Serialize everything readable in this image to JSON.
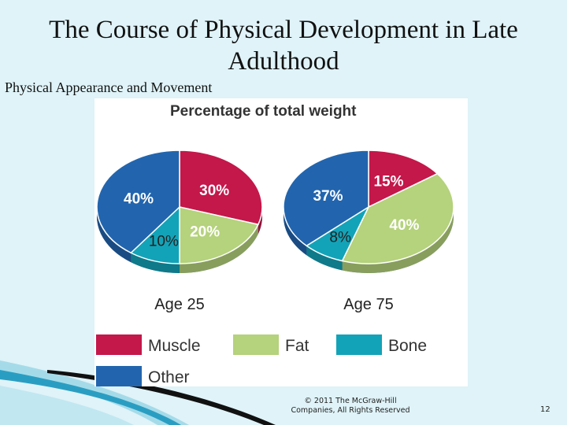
{
  "slide": {
    "title": "The Course of Physical Development in Late Adulthood",
    "subtitle": "Physical Appearance and Movement",
    "footer_line1": "© 2011 The McGraw-Hill",
    "footer_line2": "Companies, All Rights Reserved",
    "page_number": "12"
  },
  "colors": {
    "muscle": "#c4174a",
    "fat": "#b5d27c",
    "bone": "#13a3b8",
    "other": "#2265ae"
  },
  "chart_data": {
    "type": "pie",
    "title": "Percentage of total weight",
    "legend": [
      "Muscle",
      "Fat",
      "Bone",
      "Other"
    ],
    "legend_position": "bottom",
    "pies": [
      {
        "label": "Age 25",
        "slices": [
          {
            "name": "Muscle",
            "value": 30,
            "label": "30%"
          },
          {
            "name": "Fat",
            "value": 20,
            "label": "20%"
          },
          {
            "name": "Bone",
            "value": 10,
            "label": "10%"
          },
          {
            "name": "Other",
            "value": 40,
            "label": "40%"
          }
        ]
      },
      {
        "label": "Age 75",
        "slices": [
          {
            "name": "Muscle",
            "value": 15,
            "label": "15%"
          },
          {
            "name": "Fat",
            "value": 40,
            "label": "40%"
          },
          {
            "name": "Bone",
            "value": 8,
            "label": "8%"
          },
          {
            "name": "Other",
            "value": 37,
            "label": "37%"
          }
        ]
      }
    ]
  }
}
